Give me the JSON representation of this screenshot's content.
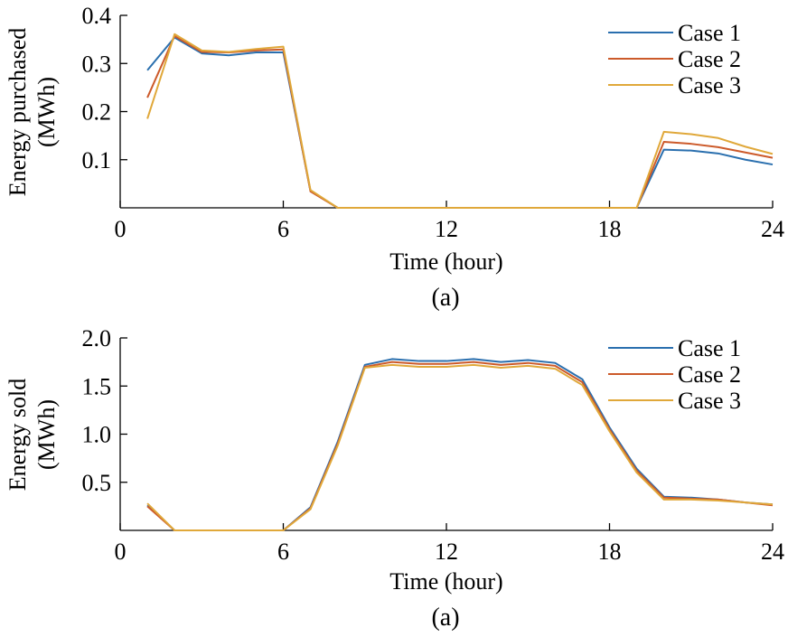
{
  "colors": {
    "case1": "#2a6fae",
    "case2": "#cc5a2a",
    "case3": "#e0a83a"
  },
  "chart_data": [
    {
      "type": "line",
      "caption": "(a)",
      "xlabel": "Time (hour)",
      "ylabel": [
        "Energy purchased",
        "(MWh)"
      ],
      "xlim": [
        0,
        24
      ],
      "ylim": [
        0,
        0.4
      ],
      "xticks": [
        0,
        6,
        12,
        18,
        24
      ],
      "yticks": [
        0.1,
        0.2,
        0.3,
        0.4
      ],
      "ytick_labels": [
        "0.1",
        "0.2",
        "0.3",
        "0.4"
      ],
      "legend_position": "top-right",
      "x": [
        1,
        2,
        3,
        4,
        5,
        6,
        7,
        8,
        9,
        10,
        11,
        12,
        13,
        14,
        15,
        16,
        17,
        18,
        19,
        20,
        21,
        22,
        23,
        24
      ],
      "series": [
        {
          "name": "Case 1",
          "color_key": "case1",
          "values": [
            0.286,
            0.354,
            0.321,
            0.317,
            0.323,
            0.323,
            0.035,
            0,
            0,
            0,
            0,
            0,
            0,
            0,
            0,
            0,
            0,
            0,
            0,
            0.121,
            0.119,
            0.113,
            0.1,
            0.09
          ]
        },
        {
          "name": "Case 2",
          "color_key": "case2",
          "values": [
            0.229,
            0.357,
            0.324,
            0.323,
            0.327,
            0.329,
            0.034,
            0,
            0,
            0,
            0,
            0,
            0,
            0,
            0,
            0,
            0,
            0,
            0,
            0.137,
            0.133,
            0.126,
            0.115,
            0.104
          ]
        },
        {
          "name": "Case 3",
          "color_key": "case3",
          "values": [
            0.185,
            0.361,
            0.327,
            0.324,
            0.33,
            0.335,
            0.037,
            0,
            0,
            0,
            0,
            0,
            0,
            0,
            0,
            0,
            0,
            0,
            0,
            0.158,
            0.153,
            0.145,
            0.127,
            0.112
          ]
        }
      ]
    },
    {
      "type": "line",
      "caption": "(a)",
      "xlabel": "Time (hour)",
      "ylabel": [
        "Energy sold",
        "(MWh)"
      ],
      "xlim": [
        0,
        24
      ],
      "ylim": [
        0,
        2.0
      ],
      "xticks": [
        0,
        6,
        12,
        18,
        24
      ],
      "yticks": [
        0.5,
        1.0,
        1.5,
        2.0
      ],
      "ytick_labels": [
        "0.5",
        "1.0",
        "1.5",
        "2.0"
      ],
      "legend_position": "top-right",
      "x": [
        1,
        2,
        3,
        4,
        5,
        6,
        7,
        8,
        9,
        10,
        11,
        12,
        13,
        14,
        15,
        16,
        17,
        18,
        19,
        20,
        21,
        22,
        23,
        24
      ],
      "series": [
        {
          "name": "Case 1",
          "color_key": "case1",
          "values": [
            0.26,
            0,
            0,
            0,
            0,
            0,
            0.24,
            0.92,
            1.72,
            1.78,
            1.76,
            1.76,
            1.78,
            1.75,
            1.77,
            1.74,
            1.57,
            1.07,
            0.64,
            0.35,
            0.34,
            0.32,
            0.29,
            0.27
          ]
        },
        {
          "name": "Case 2",
          "color_key": "case2",
          "values": [
            0.25,
            0,
            0,
            0,
            0,
            0,
            0.23,
            0.9,
            1.7,
            1.75,
            1.73,
            1.73,
            1.75,
            1.72,
            1.74,
            1.71,
            1.54,
            1.05,
            0.62,
            0.34,
            0.33,
            0.32,
            0.29,
            0.26
          ]
        },
        {
          "name": "Case 3",
          "color_key": "case3",
          "values": [
            0.28,
            0,
            0,
            0,
            0,
            0,
            0.22,
            0.88,
            1.69,
            1.72,
            1.7,
            1.7,
            1.72,
            1.69,
            1.71,
            1.68,
            1.51,
            1.03,
            0.6,
            0.32,
            0.32,
            0.31,
            0.29,
            0.27
          ]
        }
      ]
    }
  ]
}
